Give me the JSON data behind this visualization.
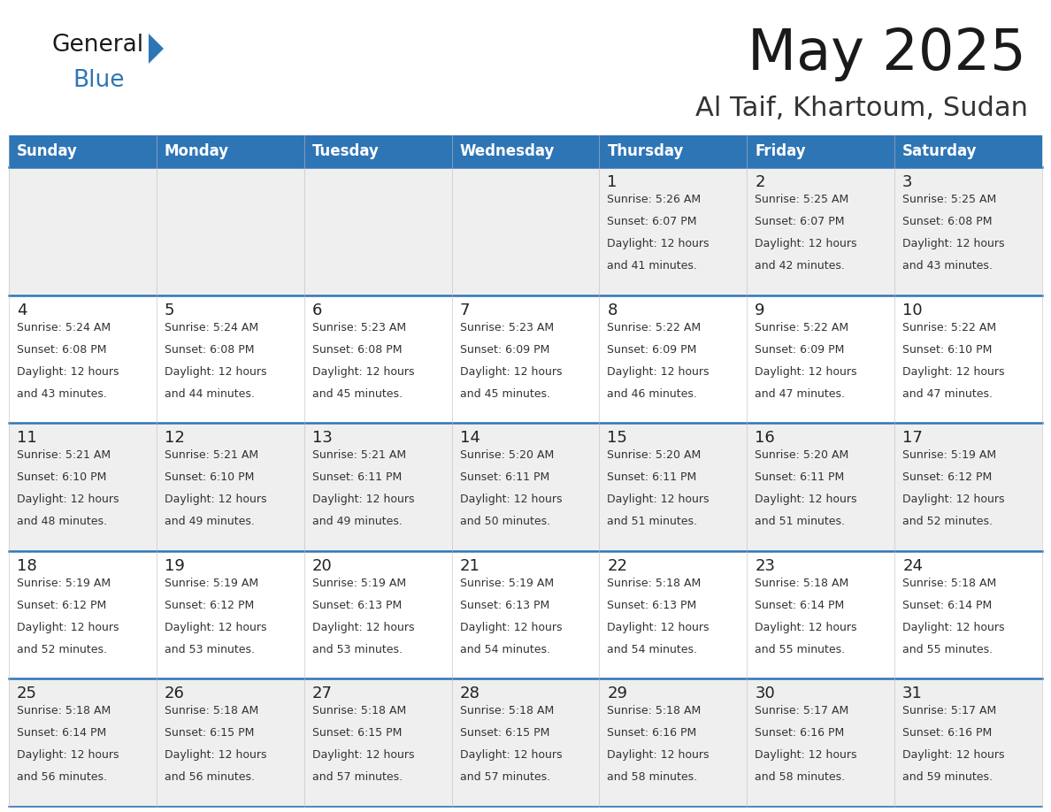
{
  "title": "May 2025",
  "subtitle": "Al Taif, Khartoum, Sudan",
  "days_of_week": [
    "Sunday",
    "Monday",
    "Tuesday",
    "Wednesday",
    "Thursday",
    "Friday",
    "Saturday"
  ],
  "header_bg": "#2E75B6",
  "header_text": "#FFFFFF",
  "row_bg_even": "#EFEFEF",
  "row_bg_odd": "#FFFFFF",
  "separator_color": "#2E75B6",
  "day_number_color": "#222222",
  "text_color": "#333333",
  "title_color": "#1a1a1a",
  "subtitle_color": "#333333",
  "logo_general_color": "#1a1a1a",
  "logo_blue_color": "#2E75B6",
  "logo_triangle_color": "#2E75B6",
  "calendar": [
    [
      {
        "day": "",
        "sunrise": "",
        "sunset": "",
        "daylight": ""
      },
      {
        "day": "",
        "sunrise": "",
        "sunset": "",
        "daylight": ""
      },
      {
        "day": "",
        "sunrise": "",
        "sunset": "",
        "daylight": ""
      },
      {
        "day": "",
        "sunrise": "",
        "sunset": "",
        "daylight": ""
      },
      {
        "day": "1",
        "sunrise": "5:26 AM",
        "sunset": "6:07 PM",
        "daylight": "12 hours and 41 minutes."
      },
      {
        "day": "2",
        "sunrise": "5:25 AM",
        "sunset": "6:07 PM",
        "daylight": "12 hours and 42 minutes."
      },
      {
        "day": "3",
        "sunrise": "5:25 AM",
        "sunset": "6:08 PM",
        "daylight": "12 hours and 43 minutes."
      }
    ],
    [
      {
        "day": "4",
        "sunrise": "5:24 AM",
        "sunset": "6:08 PM",
        "daylight": "12 hours and 43 minutes."
      },
      {
        "day": "5",
        "sunrise": "5:24 AM",
        "sunset": "6:08 PM",
        "daylight": "12 hours and 44 minutes."
      },
      {
        "day": "6",
        "sunrise": "5:23 AM",
        "sunset": "6:08 PM",
        "daylight": "12 hours and 45 minutes."
      },
      {
        "day": "7",
        "sunrise": "5:23 AM",
        "sunset": "6:09 PM",
        "daylight": "12 hours and 45 minutes."
      },
      {
        "day": "8",
        "sunrise": "5:22 AM",
        "sunset": "6:09 PM",
        "daylight": "12 hours and 46 minutes."
      },
      {
        "day": "9",
        "sunrise": "5:22 AM",
        "sunset": "6:09 PM",
        "daylight": "12 hours and 47 minutes."
      },
      {
        "day": "10",
        "sunrise": "5:22 AM",
        "sunset": "6:10 PM",
        "daylight": "12 hours and 47 minutes."
      }
    ],
    [
      {
        "day": "11",
        "sunrise": "5:21 AM",
        "sunset": "6:10 PM",
        "daylight": "12 hours and 48 minutes."
      },
      {
        "day": "12",
        "sunrise": "5:21 AM",
        "sunset": "6:10 PM",
        "daylight": "12 hours and 49 minutes."
      },
      {
        "day": "13",
        "sunrise": "5:21 AM",
        "sunset": "6:11 PM",
        "daylight": "12 hours and 49 minutes."
      },
      {
        "day": "14",
        "sunrise": "5:20 AM",
        "sunset": "6:11 PM",
        "daylight": "12 hours and 50 minutes."
      },
      {
        "day": "15",
        "sunrise": "5:20 AM",
        "sunset": "6:11 PM",
        "daylight": "12 hours and 51 minutes."
      },
      {
        "day": "16",
        "sunrise": "5:20 AM",
        "sunset": "6:11 PM",
        "daylight": "12 hours and 51 minutes."
      },
      {
        "day": "17",
        "sunrise": "5:19 AM",
        "sunset": "6:12 PM",
        "daylight": "12 hours and 52 minutes."
      }
    ],
    [
      {
        "day": "18",
        "sunrise": "5:19 AM",
        "sunset": "6:12 PM",
        "daylight": "12 hours and 52 minutes."
      },
      {
        "day": "19",
        "sunrise": "5:19 AM",
        "sunset": "6:12 PM",
        "daylight": "12 hours and 53 minutes."
      },
      {
        "day": "20",
        "sunrise": "5:19 AM",
        "sunset": "6:13 PM",
        "daylight": "12 hours and 53 minutes."
      },
      {
        "day": "21",
        "sunrise": "5:19 AM",
        "sunset": "6:13 PM",
        "daylight": "12 hours and 54 minutes."
      },
      {
        "day": "22",
        "sunrise": "5:18 AM",
        "sunset": "6:13 PM",
        "daylight": "12 hours and 54 minutes."
      },
      {
        "day": "23",
        "sunrise": "5:18 AM",
        "sunset": "6:14 PM",
        "daylight": "12 hours and 55 minutes."
      },
      {
        "day": "24",
        "sunrise": "5:18 AM",
        "sunset": "6:14 PM",
        "daylight": "12 hours and 55 minutes."
      }
    ],
    [
      {
        "day": "25",
        "sunrise": "5:18 AM",
        "sunset": "6:14 PM",
        "daylight": "12 hours and 56 minutes."
      },
      {
        "day": "26",
        "sunrise": "5:18 AM",
        "sunset": "6:15 PM",
        "daylight": "12 hours and 56 minutes."
      },
      {
        "day": "27",
        "sunrise": "5:18 AM",
        "sunset": "6:15 PM",
        "daylight": "12 hours and 57 minutes."
      },
      {
        "day": "28",
        "sunrise": "5:18 AM",
        "sunset": "6:15 PM",
        "daylight": "12 hours and 57 minutes."
      },
      {
        "day": "29",
        "sunrise": "5:18 AM",
        "sunset": "6:16 PM",
        "daylight": "12 hours and 58 minutes."
      },
      {
        "day": "30",
        "sunrise": "5:17 AM",
        "sunset": "6:16 PM",
        "daylight": "12 hours and 58 minutes."
      },
      {
        "day": "31",
        "sunrise": "5:17 AM",
        "sunset": "6:16 PM",
        "daylight": "12 hours and 59 minutes."
      }
    ]
  ]
}
